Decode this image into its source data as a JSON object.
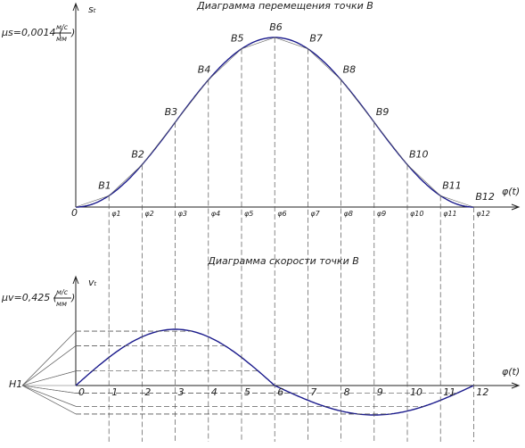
{
  "top": {
    "title": "Диаграмма перемещения точки B",
    "axis_y": "sₜ",
    "axis_x": "φ(t)",
    "origin": "0",
    "scale": {
      "text": "μs=0,0014 (",
      "num": "м/с",
      "den": "мм",
      "close": ")"
    },
    "points": [
      "B1",
      "B2",
      "B3",
      "B4",
      "B5",
      "B6",
      "B7",
      "B8",
      "B9",
      "B10",
      "B11",
      "B12"
    ],
    "phi": [
      "φ1",
      "φ2",
      "φ3",
      "φ4",
      "φ5",
      "φ6",
      "φ7",
      "φ8",
      "φ9",
      "φ10",
      "φ11",
      "φ12"
    ]
  },
  "bottom": {
    "title": "Диаграмма скорости точки B",
    "axis_y": "vₜ",
    "axis_x": "φ(t)",
    "pole": "H1",
    "scale": {
      "text": "μv=0,425 (",
      "num": "м/с",
      "den": "мм",
      "close": ")"
    },
    "ticks": [
      "0",
      "1",
      "2",
      "3",
      "4",
      "5",
      "6",
      "7",
      "8",
      "9",
      "10",
      "11",
      "12"
    ]
  }
}
